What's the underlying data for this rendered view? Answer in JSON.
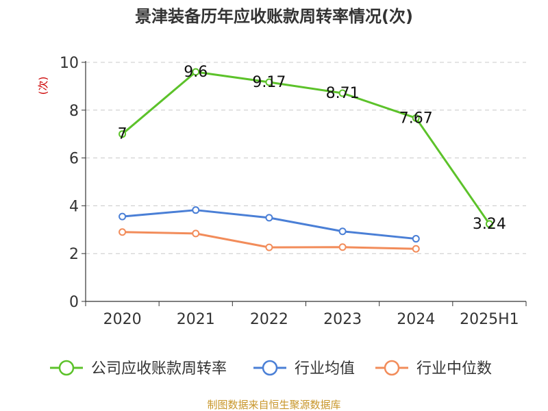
{
  "chart_data": {
    "type": "line",
    "title": "景津装备历年应收账款周转率情况(次)",
    "ylabel": "(次)",
    "xlabel": "",
    "categories": [
      "2020",
      "2021",
      "2022",
      "2023",
      "2024",
      "2025H1"
    ],
    "ylim": [
      0,
      10
    ],
    "yticks": [
      0,
      2,
      4,
      6,
      8,
      10
    ],
    "grid": true,
    "legend_position": "bottom",
    "series": [
      {
        "name": "公司应收账款周转率",
        "color": "#5cc22a",
        "values": [
          7,
          9.6,
          9.17,
          8.71,
          7.67,
          3.24
        ],
        "labels": [
          "7",
          "9.6",
          "9.17",
          "8.71",
          "7.67",
          "3.24"
        ]
      },
      {
        "name": "行业均值",
        "color": "#4a7fd6",
        "values": [
          3.55,
          3.82,
          3.5,
          2.93,
          2.62,
          null
        ]
      },
      {
        "name": "行业中位数",
        "color": "#f28c5a",
        "values": [
          2.9,
          2.84,
          2.26,
          2.27,
          2.2,
          null
        ]
      }
    ]
  },
  "source": "制图数据来自恒生聚源数据库"
}
